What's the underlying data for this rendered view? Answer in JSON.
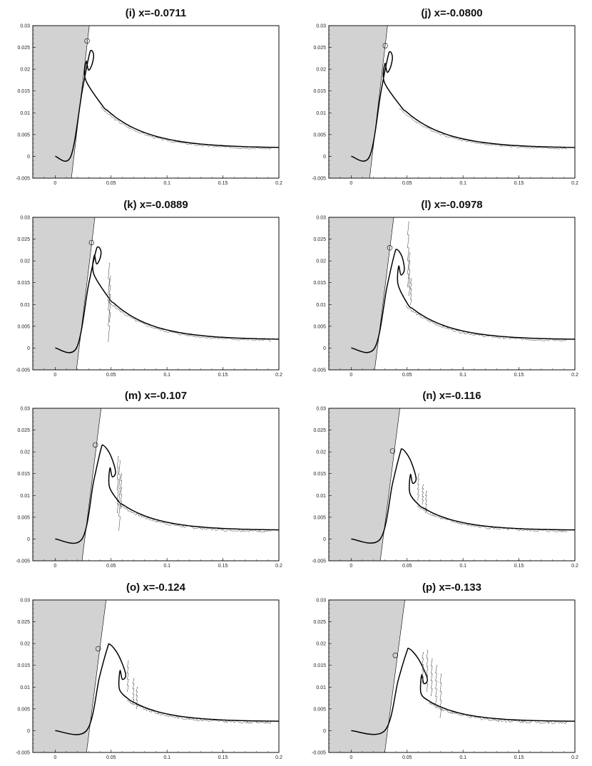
{
  "chart_data": [
    {
      "type": "line",
      "title": "(i) x=-0.0711",
      "xlim": [
        -0.02,
        0.2
      ],
      "ylim": [
        -0.005,
        0.03
      ],
      "x_ticks": [
        "0",
        "0.05",
        "0.1",
        "0.15",
        "0.2"
      ],
      "y_ticks": [
        "-0.005",
        "0",
        "0.005",
        "0.01",
        "0.015",
        "0.02",
        "0.025",
        "0.03"
      ],
      "wall": {
        "bottom_x": 0.0145,
        "top_x": 0.0305
      },
      "marker": [
        0.0285,
        0.0265
      ],
      "bend": {
        "x": 0.014,
        "y": 0
      },
      "peak": {
        "x": 0.0325,
        "y": 0.0243
      },
      "curl": {
        "x": 0.0298,
        "y": 0.021
      },
      "tail_end_y": 0.0019,
      "noise": 0.25,
      "spikes": []
    },
    {
      "type": "line",
      "title": "(j) x=-0.0800",
      "xlim": [
        -0.02,
        0.2
      ],
      "ylim": [
        -0.005,
        0.03
      ],
      "x_ticks": [
        "0",
        "0.05",
        "0.1",
        "0.15",
        "0.2"
      ],
      "y_ticks": [
        "-0.005",
        "0",
        "0.005",
        "0.01",
        "0.015",
        "0.02",
        "0.025",
        "0.03"
      ],
      "wall": {
        "bottom_x": 0.0165,
        "top_x": 0.0325
      },
      "marker": [
        0.0305,
        0.0254
      ],
      "bend": {
        "x": 0.0165,
        "y": 0
      },
      "peak": {
        "x": 0.035,
        "y": 0.024
      },
      "curl": {
        "x": 0.0322,
        "y": 0.0205
      },
      "tail_end_y": 0.0019,
      "noise": 0.25,
      "spikes": []
    },
    {
      "type": "line",
      "title": "(k) x=-0.0889",
      "xlim": [
        -0.02,
        0.2
      ],
      "ylim": [
        -0.005,
        0.03
      ],
      "x_ticks": [
        "0",
        "0.05",
        "0.1",
        "0.15",
        "0.2"
      ],
      "y_ticks": [
        "-0.005",
        "0",
        "0.005",
        "0.01",
        "0.015",
        "0.02",
        "0.025",
        "0.03"
      ],
      "wall": {
        "bottom_x": 0.019,
        "top_x": 0.0355
      },
      "marker": [
        0.0325,
        0.0242
      ],
      "bend": {
        "x": 0.019,
        "y": 0
      },
      "peak": {
        "x": 0.0385,
        "y": 0.0232
      },
      "curl": {
        "x": 0.037,
        "y": 0.0205
      },
      "tail_end_y": 0.0019,
      "noise": 0.3,
      "spikes": [
        {
          "x": 0.048,
          "top": 0.0195,
          "bottom": 0.0015
        },
        {
          "x": 0.049,
          "top": 0.0165,
          "bottom": 0.006
        }
      ]
    },
    {
      "type": "line",
      "title": "(l) x=-0.0978",
      "xlim": [
        -0.02,
        0.2
      ],
      "ylim": [
        -0.005,
        0.03
      ],
      "x_ticks": [
        "0",
        "0.05",
        "0.1",
        "0.15",
        "0.2"
      ],
      "y_ticks": [
        "-0.005",
        "0",
        "0.005",
        "0.01",
        "0.015",
        "0.02",
        "0.025",
        "0.03"
      ],
      "wall": {
        "bottom_x": 0.021,
        "top_x": 0.038
      },
      "marker": [
        0.0345,
        0.023
      ],
      "bend": {
        "x": 0.021,
        "y": 0
      },
      "peak": {
        "x": 0.041,
        "y": 0.0226
      },
      "curl": {
        "x": 0.0445,
        "y": 0.018
      },
      "tail_end_y": 0.0019,
      "noise": 0.3,
      "spikes": [
        {
          "x": 0.051,
          "top": 0.029,
          "bottom": 0.014
        },
        {
          "x": 0.052,
          "top": 0.022,
          "bottom": 0.012
        },
        {
          "x": 0.0535,
          "top": 0.016,
          "bottom": 0.01
        }
      ]
    },
    {
      "type": "line",
      "title": "(m) x=-0.107",
      "xlim": [
        -0.02,
        0.2
      ],
      "ylim": [
        -0.005,
        0.03
      ],
      "x_ticks": [
        "0",
        "0.05",
        "0.1",
        "0.15",
        "0.2"
      ],
      "y_ticks": [
        "-0.005",
        "0",
        "0.005",
        "0.01",
        "0.015",
        "0.02",
        "0.025",
        "0.03"
      ],
      "wall": {
        "bottom_x": 0.024,
        "top_x": 0.041
      },
      "marker": [
        0.036,
        0.0216
      ],
      "bend": {
        "x": 0.024,
        "y": 0
      },
      "peak": {
        "x": 0.043,
        "y": 0.0215
      },
      "curl": {
        "x": 0.051,
        "y": 0.0155
      },
      "tail_end_y": 0.002,
      "noise": 0.35,
      "spikes": [
        {
          "x": 0.056,
          "top": 0.019,
          "bottom": 0.006
        },
        {
          "x": 0.0575,
          "top": 0.018,
          "bottom": 0.002
        },
        {
          "x": 0.059,
          "top": 0.015,
          "bottom": 0.007
        }
      ]
    },
    {
      "type": "line",
      "title": "(n) x=-0.116",
      "xlim": [
        -0.02,
        0.2
      ],
      "ylim": [
        -0.005,
        0.03
      ],
      "x_ticks": [
        "0",
        "0.05",
        "0.1",
        "0.15",
        "0.2"
      ],
      "y_ticks": [
        "-0.005",
        "0",
        "0.005",
        "0.01",
        "0.015",
        "0.02",
        "0.025",
        "0.03"
      ],
      "wall": {
        "bottom_x": 0.026,
        "top_x": 0.0435
      },
      "marker": [
        0.037,
        0.0202
      ],
      "bend": {
        "x": 0.026,
        "y": 0
      },
      "peak": {
        "x": 0.046,
        "y": 0.0206
      },
      "curl": {
        "x": 0.055,
        "y": 0.014
      },
      "tail_end_y": 0.002,
      "noise": 0.35,
      "spikes": [
        {
          "x": 0.06,
          "top": 0.015,
          "bottom": 0.009
        },
        {
          "x": 0.064,
          "top": 0.0125,
          "bottom": 0.008
        },
        {
          "x": 0.067,
          "top": 0.011,
          "bottom": 0.006
        }
      ]
    },
    {
      "type": "line",
      "title": "(o) x=-0.124",
      "xlim": [
        -0.02,
        0.2
      ],
      "ylim": [
        -0.005,
        0.03
      ],
      "x_ticks": [
        "0",
        "0.05",
        "0.1",
        "0.15",
        "0.2"
      ],
      "y_ticks": [
        "-0.005",
        "0",
        "0.005",
        "0.01",
        "0.015",
        "0.02",
        "0.025",
        "0.03"
      ],
      "wall": {
        "bottom_x": 0.028,
        "top_x": 0.0455
      },
      "marker": [
        0.0385,
        0.0188
      ],
      "bend": {
        "x": 0.028,
        "y": 0
      },
      "peak": {
        "x": 0.049,
        "y": 0.0198
      },
      "curl": {
        "x": 0.06,
        "y": 0.013
      },
      "tail_end_y": 0.0021,
      "noise": 0.35,
      "spikes": [
        {
          "x": 0.065,
          "top": 0.016,
          "bottom": 0.009
        },
        {
          "x": 0.07,
          "top": 0.012,
          "bottom": 0.006
        },
        {
          "x": 0.073,
          "top": 0.01,
          "bottom": 0.005
        }
      ]
    },
    {
      "type": "line",
      "title": "(p) x=-0.133",
      "xlim": [
        -0.02,
        0.2
      ],
      "ylim": [
        -0.005,
        0.03
      ],
      "x_ticks": [
        "0",
        "0.05",
        "0.1",
        "0.15",
        "0.2"
      ],
      "y_ticks": [
        "-0.005",
        "0",
        "0.005",
        "0.01",
        "0.015",
        "0.02",
        "0.025",
        "0.03"
      ],
      "wall": {
        "bottom_x": 0.03,
        "top_x": 0.048
      },
      "marker": [
        0.0395,
        0.0173
      ],
      "bend": {
        "x": 0.03,
        "y": 0
      },
      "peak": {
        "x": 0.052,
        "y": 0.0188
      },
      "curl": {
        "x": 0.065,
        "y": 0.012
      },
      "tail_end_y": 0.0021,
      "noise": 0.4,
      "spikes": [
        {
          "x": 0.064,
          "top": 0.018,
          "bottom": 0.011
        },
        {
          "x": 0.068,
          "top": 0.0185,
          "bottom": 0.009
        },
        {
          "x": 0.072,
          "top": 0.0165,
          "bottom": 0.008
        },
        {
          "x": 0.076,
          "top": 0.015,
          "bottom": 0.006
        },
        {
          "x": 0.08,
          "top": 0.013,
          "bottom": 0.003
        }
      ]
    }
  ],
  "colors": {
    "wall_fill": "#d2d2d2",
    "curve": "#000000",
    "noisy_curve": "#333333"
  }
}
